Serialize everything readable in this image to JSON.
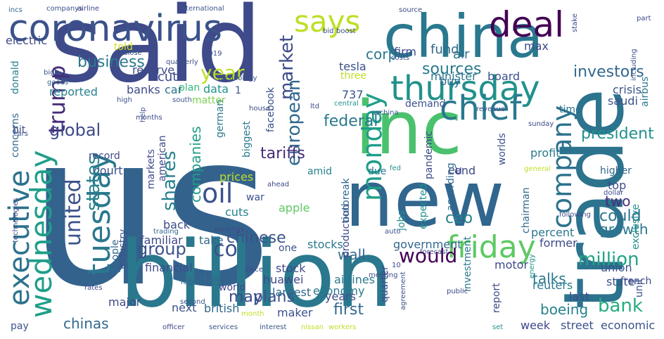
{
  "words": [
    {
      "text": "us",
      "color": "#33638d",
      "vertical": false
    },
    {
      "text": "said",
      "color": "#3e4a89",
      "vertical": false
    },
    {
      "text": "billion",
      "color": "#2a788e",
      "vertical": false
    },
    {
      "text": "trade",
      "color": "#2c738e",
      "vertical": true
    },
    {
      "text": "new",
      "color": "#31668e",
      "vertical": false
    },
    {
      "text": "inc",
      "color": "#4ac16d",
      "vertical": false
    },
    {
      "text": "china",
      "color": "#2a788e",
      "vertical": false
    },
    {
      "text": "coronavirus",
      "color": "#3b528b",
      "vertical": false
    },
    {
      "text": "deal",
      "color": "#440154",
      "vertical": false
    },
    {
      "text": "says",
      "color": "#bddf26",
      "vertical": false
    },
    {
      "text": "thursday",
      "color": "#21918c",
      "vertical": false
    },
    {
      "text": "chief",
      "color": "#2a788e",
      "vertical": false
    },
    {
      "text": "friday",
      "color": "#5ec962",
      "vertical": false
    },
    {
      "text": "tuesday",
      "color": "#2a788e",
      "vertical": true
    },
    {
      "text": "wednesday",
      "color": "#1f9e89",
      "vertical": true
    },
    {
      "text": "executive",
      "color": "#2c728e",
      "vertical": true
    },
    {
      "text": "monday",
      "color": "#1f9e89",
      "vertical": true
    },
    {
      "text": "company",
      "color": "#2c728e",
      "vertical": true
    },
    {
      "text": "trump",
      "color": "#472c7a",
      "vertical": true
    },
    {
      "text": "oil",
      "color": "#3b528b",
      "vertical": false
    },
    {
      "text": "united",
      "color": "#3b528b",
      "vertical": true
    },
    {
      "text": "states",
      "color": "#26828e",
      "vertical": true
    },
    {
      "text": "shares",
      "color": "#26828e",
      "vertical": true
    },
    {
      "text": "market",
      "color": "#3e4a89",
      "vertical": true
    },
    {
      "text": "european",
      "color": "#31688e",
      "vertical": true
    },
    {
      "text": "year",
      "color": "#bddf26",
      "vertical": false
    },
    {
      "text": "million",
      "color": "#20a486",
      "vertical": false
    },
    {
      "text": "would",
      "color": "#440154",
      "vertical": false
    },
    {
      "text": "global",
      "color": "#3e4a89",
      "vertical": false
    },
    {
      "text": "group",
      "color": "#3b528b",
      "vertical": false
    },
    {
      "text": "co",
      "color": "#3b528b",
      "vertical": false
    },
    {
      "text": "bank",
      "color": "#27ad81",
      "vertical": false
    },
    {
      "text": "investors",
      "color": "#31688e",
      "vertical": false
    },
    {
      "text": "sources",
      "color": "#2a788e",
      "vertical": false
    },
    {
      "text": "business",
      "color": "#2a788e",
      "vertical": false
    },
    {
      "text": "president",
      "color": "#21918c",
      "vertical": false
    },
    {
      "text": "federal",
      "color": "#2a788e",
      "vertical": false
    },
    {
      "text": "tariffs",
      "color": "#472c7a",
      "vertical": false
    },
    {
      "text": "chinese",
      "color": "#3b528b",
      "vertical": false
    },
    {
      "text": "could",
      "color": "#2c728e",
      "vertical": false
    },
    {
      "text": "growth",
      "color": "#2a788e",
      "vertical": false
    },
    {
      "text": "two",
      "color": "#472c7a",
      "vertical": false
    },
    {
      "text": "ceo",
      "color": "#26828e",
      "vertical": false
    },
    {
      "text": "may",
      "color": "#3e4a89",
      "vertical": false
    },
    {
      "text": "plans",
      "color": "#3b528b",
      "vertical": false
    },
    {
      "text": "first",
      "color": "#31688e",
      "vertical": false
    },
    {
      "text": "sales",
      "color": "#31688e",
      "vertical": false
    },
    {
      "text": "talks",
      "color": "#2a788e",
      "vertical": false
    },
    {
      "text": "boeing",
      "color": "#26828e",
      "vertical": false
    },
    {
      "text": "chinas",
      "color": "#31688e",
      "vertical": false
    },
    {
      "text": "wall",
      "color": "#31688e",
      "vertical": false
    },
    {
      "text": "companies",
      "color": "#1f9e89",
      "vertical": true
    },
    {
      "text": "corp",
      "color": "#2a788e",
      "vertical": false
    },
    {
      "text": "cut",
      "color": "#3e4a89",
      "vertical": false
    },
    {
      "text": "reserve",
      "color": "#3e4a89",
      "vertical": false
    },
    {
      "text": "told",
      "color": "#d0e11c",
      "vertical": false
    },
    {
      "text": "plan",
      "color": "#35b779",
      "vertical": false
    },
    {
      "text": "matter",
      "color": "#7ad151",
      "vertical": false
    },
    {
      "text": "fund",
      "color": "#31688e",
      "vertical": false
    },
    {
      "text": "air",
      "color": "#2c728e",
      "vertical": false
    },
    {
      "text": "max",
      "color": "#3e4a89",
      "vertical": false
    },
    {
      "text": "crisis",
      "color": "#3b528b",
      "vertical": false
    },
    {
      "text": "firm",
      "color": "#3e4a89",
      "vertical": false
    },
    {
      "text": "buy",
      "color": "#31688e",
      "vertical": false
    },
    {
      "text": "tesla",
      "color": "#3b528b",
      "vertical": false
    },
    {
      "text": "737",
      "color": "#3b528b",
      "vertical": false
    },
    {
      "text": "minister",
      "color": "#2a788e",
      "vertical": false
    },
    {
      "text": "board",
      "color": "#3b528b",
      "vertical": false
    },
    {
      "text": "saudi",
      "color": "#3b528b",
      "vertical": false
    },
    {
      "text": "reported",
      "color": "#26828e",
      "vertical": false
    },
    {
      "text": "banks",
      "color": "#3e4a89",
      "vertical": false
    },
    {
      "text": "car",
      "color": "#2c728e",
      "vertical": false
    },
    {
      "text": "data",
      "color": "#21918c",
      "vertical": false
    },
    {
      "text": "demand",
      "color": "#3b528b",
      "vertical": false
    },
    {
      "text": "time",
      "color": "#2c728e",
      "vertical": false
    },
    {
      "text": "record",
      "color": "#3e4a89",
      "vertical": false
    },
    {
      "text": "court",
      "color": "#3b528b",
      "vertical": false
    },
    {
      "text": "profit",
      "color": "#2a788e",
      "vertical": false
    },
    {
      "text": "eu",
      "color": "#3e4a89",
      "vertical": false
    },
    {
      "text": "end",
      "color": "#3e4a89",
      "vertical": false
    },
    {
      "text": "higher",
      "color": "#31688e",
      "vertical": false
    },
    {
      "text": "top",
      "color": "#3e4a89",
      "vertical": false
    },
    {
      "text": "amid",
      "color": "#26828e",
      "vertical": false
    },
    {
      "text": "due",
      "color": "#2a788e",
      "vertical": false
    },
    {
      "text": "prices",
      "color": "#bddf26",
      "vertical": false
    },
    {
      "text": "war",
      "color": "#3b528b",
      "vertical": false
    },
    {
      "text": "apple",
      "color": "#5ec962",
      "vertical": false
    },
    {
      "text": "cuts",
      "color": "#26828e",
      "vertical": false
    },
    {
      "text": "back",
      "color": "#3e4a89",
      "vertical": false
    },
    {
      "text": "familiar",
      "color": "#3e4a89",
      "vertical": false
    },
    {
      "text": "take",
      "color": "#31688e",
      "vertical": false
    },
    {
      "text": "percent",
      "color": "#2a788e",
      "vertical": false
    },
    {
      "text": "former",
      "color": "#3e4a89",
      "vertical": false
    },
    {
      "text": "government",
      "color": "#31688e",
      "vertical": false
    },
    {
      "text": "one",
      "color": "#3b528b",
      "vertical": false
    },
    {
      "text": "stocks",
      "color": "#2a788e",
      "vertical": false
    },
    {
      "text": "financial",
      "color": "#3e4a89",
      "vertical": false
    },
    {
      "text": "stock",
      "color": "#3e4a89",
      "vertical": false
    },
    {
      "text": "motor",
      "color": "#3e4a89",
      "vertical": false
    },
    {
      "text": "huawei",
      "color": "#3e4a89",
      "vertical": false
    },
    {
      "text": "airlines",
      "color": "#2a788e",
      "vertical": false
    },
    {
      "text": "largest",
      "color": "#31688e",
      "vertical": false
    },
    {
      "text": "world",
      "color": "#3e4a89",
      "vertical": false
    },
    {
      "text": "economy",
      "color": "#2a788e",
      "vertical": false
    },
    {
      "text": "years",
      "color": "#3e4a89",
      "vertical": false
    },
    {
      "text": "major",
      "color": "#3e4a89",
      "vertical": false
    },
    {
      "text": "next",
      "color": "#3b528b",
      "vertical": false
    },
    {
      "text": "british",
      "color": "#31688e",
      "vertical": false
    },
    {
      "text": "maker",
      "color": "#3b528b",
      "vertical": false
    },
    {
      "text": "union",
      "color": "#3b528b",
      "vertical": false
    },
    {
      "text": "state",
      "color": "#3b528b",
      "vertical": false
    },
    {
      "text": "reuters",
      "color": "#2a788e",
      "vertical": false
    },
    {
      "text": "last",
      "color": "#3e4a89",
      "vertical": false
    },
    {
      "text": "week",
      "color": "#3e4a89",
      "vertical": false
    },
    {
      "text": "street",
      "color": "#3b528b",
      "vertical": false
    },
    {
      "text": "economic",
      "color": "#3b528b",
      "vertical": false
    },
    {
      "text": "pay",
      "color": "#3b528b",
      "vertical": false
    },
    {
      "text": "electric",
      "color": "#3e4a89",
      "vertical": false
    },
    {
      "text": "1",
      "color": "#3b528b",
      "vertical": false
    },
    {
      "text": "french",
      "color": "#3e4a89",
      "vertical": false
    },
    {
      "text": "three",
      "color": "#bddf26",
      "vertical": false
    },
    {
      "text": "global_2",
      "color": "#3e4a89",
      "vertical": false
    },
    {
      "text": "market_2",
      "color": "#3e4a89",
      "vertical": false
    },
    {
      "text": "facebook",
      "color": "#3b528b",
      "vertical": true
    },
    {
      "text": "industry",
      "color": "#3b528b",
      "vertical": true
    },
    {
      "text": "production",
      "color": "#3e4a89",
      "vertical": true
    },
    {
      "text": "outbreak",
      "color": "#31688e",
      "vertical": true
    },
    {
      "text": "expected",
      "color": "#21918c",
      "vertical": true
    },
    {
      "text": "according",
      "color": "#31688e",
      "vertical": true
    },
    {
      "text": "investment",
      "color": "#2a788e",
      "vertical": true
    },
    {
      "text": "quarter",
      "color": "#3e4a89",
      "vertical": true
    },
    {
      "text": "pandemic",
      "color": "#3e4a89",
      "vertical": true
    },
    {
      "text": "jobs",
      "color": "#21918c",
      "vertical": true
    },
    {
      "text": "report",
      "color": "#3e4a89",
      "vertical": true
    },
    {
      "text": "chairman",
      "color": "#31688e",
      "vertical": true
    },
    {
      "text": "exclusive",
      "color": "#21918c",
      "vertical": true
    },
    {
      "text": "airbus",
      "color": "#2a788e",
      "vertical": true
    },
    {
      "text": "unit",
      "color": "#3b528b",
      "vertical": true
    },
    {
      "text": "biggest",
      "color": "#2a788e",
      "vertical": true
    },
    {
      "text": "german",
      "color": "#2a788e",
      "vertical": true
    },
    {
      "text": "american",
      "color": "#3e4a89",
      "vertical": true
    },
    {
      "text": "markets",
      "color": "#3e4a89",
      "vertical": true
    },
    {
      "text": "people",
      "color": "#31688e",
      "vertical": true
    },
    {
      "text": "donald",
      "color": "#26828e",
      "vertical": true
    },
    {
      "text": "concerns",
      "color": "#31688e",
      "vertical": true
    },
    {
      "text": "worlds",
      "color": "#3b528b",
      "vertical": true
    },
    {
      "text": "hit",
      "color": "#3e4a89",
      "vertical": false
    },
    {
      "text": "companys",
      "color": "#3b528b",
      "vertical": false
    },
    {
      "text": "airline",
      "color": "#3e4a89",
      "vertical": false
    },
    {
      "text": "international",
      "color": "#3b528b",
      "vertical": false
    },
    {
      "text": "incs",
      "color": "#31688e",
      "vertical": false
    },
    {
      "text": "source",
      "color": "#3e4a89",
      "vertical": false
    },
    {
      "text": "stake",
      "color": "#3e4a89",
      "vertical": true
    },
    {
      "text": "part",
      "color": "#3e4a89",
      "vertical": false
    },
    {
      "text": "bid",
      "color": "#3e4a89",
      "vertical": false
    },
    {
      "text": "boost",
      "color": "#3e4a89",
      "vertical": false
    },
    {
      "text": "including",
      "color": "#3b528b",
      "vertical": true
    },
    {
      "text": "close",
      "color": "#3b528b",
      "vertical": false
    },
    {
      "text": "2019",
      "color": "#3e4a89",
      "vertical": false
    },
    {
      "text": "quarterly",
      "color": "#3b528b",
      "vertical": false
    },
    {
      "text": "costs",
      "color": "#3b528b",
      "vertical": false
    },
    {
      "text": "big",
      "color": "#3b528b",
      "vertical": false
    },
    {
      "text": "goods",
      "color": "#31688e",
      "vertical": false
    },
    {
      "text": "central",
      "color": "#21918c",
      "vertical": false
    },
    {
      "text": "technology",
      "color": "#3b528b",
      "vertical": false
    },
    {
      "text": "high",
      "color": "#3b528b",
      "vertical": false
    },
    {
      "text": "south",
      "color": "#3b528b",
      "vertical": false
    },
    {
      "text": "house",
      "color": "#3e4a89",
      "vertical": false
    },
    {
      "text": "ltd",
      "color": "#3e4a89",
      "vertical": false
    },
    {
      "text": "months",
      "color": "#3e4a89",
      "vertical": false
    },
    {
      "text": "uschina",
      "color": "#3b528b",
      "vertical": false
    },
    {
      "text": "revenue",
      "color": "#3b528b",
      "vertical": false
    },
    {
      "text": "sunday",
      "color": "#3e4a89",
      "vertical": false
    },
    {
      "text": "help",
      "color": "#3b528b",
      "vertical": true
    },
    {
      "text": "cars",
      "color": "#3e4a89",
      "vertical": false
    },
    {
      "text": "fed",
      "color": "#21918c",
      "vertical": false
    },
    {
      "text": "general",
      "color": "#bddf26",
      "vertical": false
    },
    {
      "text": "dollar",
      "color": "#3e4a89",
      "vertical": false
    },
    {
      "text": "ahead",
      "color": "#3e4a89",
      "vertical": false
    },
    {
      "text": "following",
      "color": "#3e4a89",
      "vertical": false
    },
    {
      "text": "trading",
      "color": "#31688e",
      "vertical": false
    },
    {
      "text": "earnings",
      "color": "#3e4a89",
      "vertical": false
    },
    {
      "text": "auto",
      "color": "#3b528b",
      "vertical": false
    },
    {
      "text": "forecast",
      "color": "#3e4a89",
      "vertical": false
    },
    {
      "text": "technologies",
      "color": "#3e4a89",
      "vertical": true
    },
    {
      "text": "since",
      "color": "#3e4a89",
      "vertical": false
    },
    {
      "text": "agreement",
      "color": "#3b528b",
      "vertical": true
    },
    {
      "text": "energy",
      "color": "#21918c",
      "vertical": true
    },
    {
      "text": "fell",
      "color": "#31688e",
      "vertical": false
    },
    {
      "text": "meeting",
      "color": "#3e4a89",
      "vertical": false
    },
    {
      "text": "rates",
      "color": "#3e4a89",
      "vertical": false
    },
    {
      "text": "second",
      "color": "#3b528b",
      "vertical": false
    },
    {
      "text": "public",
      "color": "#3e4a89",
      "vertical": false
    },
    {
      "text": "month",
      "color": "#bddf26",
      "vertical": false
    },
    {
      "text": "officer",
      "color": "#3e4a89",
      "vertical": false
    },
    {
      "text": "services",
      "color": "#3b528b",
      "vertical": false
    },
    {
      "text": "interest",
      "color": "#3b528b",
      "vertical": false
    },
    {
      "text": "nissan",
      "color": "#bddf26",
      "vertical": false
    },
    {
      "text": "workers",
      "color": "#bddf26",
      "vertical": false
    },
    {
      "text": "set",
      "color": "#21918c",
      "vertical": false
    },
    {
      "text": "10",
      "color": "#3e4a89",
      "vertical": false
    }
  ]
}
